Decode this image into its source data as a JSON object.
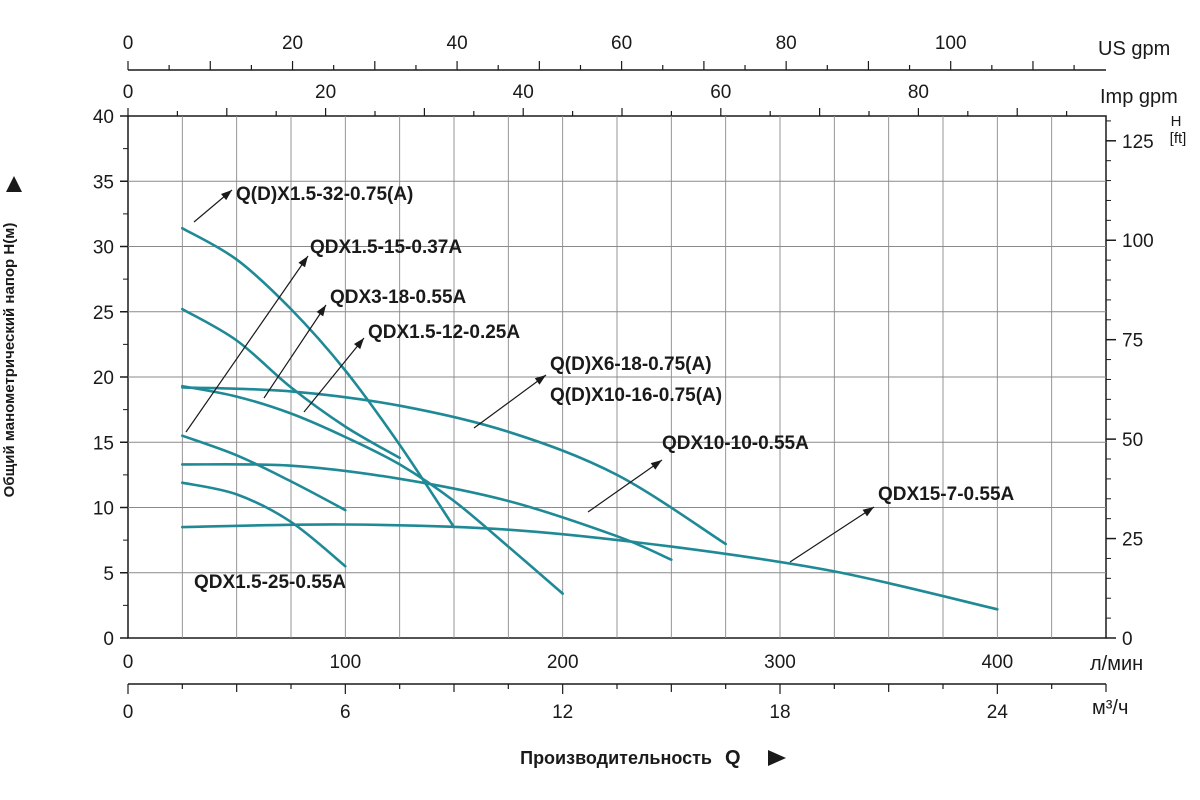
{
  "chart_data": {
    "type": "line",
    "xlabel": "Производительность",
    "xlabel_symbol": "Q",
    "ylabel": "Общий манометрический напор H(м)",
    "x_unit": "л/мин",
    "x_unit_m3h": "м³/ч",
    "x_unit_usgpm": "US gpm",
    "x_unit_impgpm": "Imp gpm",
    "y_right_unit_top": "H",
    "y_right_unit_bottom": "[ft]",
    "xlim": [
      0,
      450
    ],
    "ylim": [
      0,
      40
    ],
    "grid": true,
    "x_ticks_lmin": [
      "0",
      "100",
      "200",
      "300",
      "400"
    ],
    "x_ticks_m3h": [
      "0",
      "6",
      "12",
      "18",
      "24"
    ],
    "x_ticks_usgpm": [
      "0",
      "20",
      "40",
      "60",
      "80",
      "100"
    ],
    "x_ticks_impgpm": [
      "0",
      "20",
      "40",
      "60",
      "80"
    ],
    "y_ticks_m": [
      "0",
      "5",
      "10",
      "15",
      "20",
      "25",
      "30",
      "35",
      "40"
    ],
    "y_ticks_ft": [
      "0",
      "25",
      "50",
      "75",
      "100",
      "125"
    ],
    "series_color": "#1f8a96",
    "series": [
      {
        "name": "Q(D)X1.5-32-0.75(A)",
        "x": [
          25,
          50,
          75,
          100,
          125,
          150
        ],
        "y": [
          31.4,
          29.0,
          25.2,
          20.5,
          14.8,
          8.5
        ]
      },
      {
        "name": "QDX1.5-15-0.37A",
        "x": [
          25,
          50,
          75,
          100
        ],
        "y": [
          15.5,
          14.0,
          12.0,
          9.8
        ]
      },
      {
        "name": "QDX3-18-0.55A",
        "x": [
          25,
          50,
          75,
          100,
          125,
          150,
          175,
          200
        ],
        "y": [
          19.3,
          18.5,
          17.2,
          15.4,
          13.3,
          10.5,
          7.0,
          3.4
        ]
      },
      {
        "name": "QDX1.5-12-0.25A",
        "x": [
          25,
          50,
          75,
          100
        ],
        "y": [
          11.9,
          11.0,
          8.9,
          5.5
        ]
      },
      {
        "name": "Q(D)X6-18-0.75(A)",
        "x": [
          25,
          75,
          125,
          175,
          225,
          275
        ],
        "y": [
          19.2,
          18.9,
          17.8,
          15.8,
          12.5,
          7.2
        ]
      },
      {
        "name": "Q(D)X10-16-0.75(A)",
        "x": [
          25,
          50,
          75,
          100,
          125
        ],
        "y": [
          25.2,
          22.8,
          19.2,
          16.2,
          13.8
        ]
      },
      {
        "name": "QDX10-10-0.55A",
        "x": [
          25,
          75,
          125,
          175,
          225,
          250
        ],
        "y": [
          13.3,
          13.2,
          12.2,
          10.5,
          7.8,
          6.0
        ]
      },
      {
        "name": "QDX15-7-0.55A",
        "x": [
          25,
          100,
          175,
          250,
          325,
          400
        ],
        "y": [
          8.5,
          8.7,
          8.3,
          7.0,
          5.1,
          2.2
        ]
      },
      {
        "name": "QDX1.5-25-0.55A",
        "x": [],
        "y": []
      }
    ],
    "annotations": [
      {
        "text": "Q(D)X1.5-32-0.75(A)"
      },
      {
        "text": "QDX1.5-15-0.37A"
      },
      {
        "text": "QDX3-18-0.55A"
      },
      {
        "text": "QDX1.5-12-0.25A"
      },
      {
        "text": "Q(D)X6-18-0.75(A)"
      },
      {
        "text": "Q(D)X10-16-0.75(A)"
      },
      {
        "text": "QDX10-10-0.55A"
      },
      {
        "text": "QDX15-7-0.55A"
      },
      {
        "text": "QDX1.5-25-0.55A"
      }
    ]
  }
}
